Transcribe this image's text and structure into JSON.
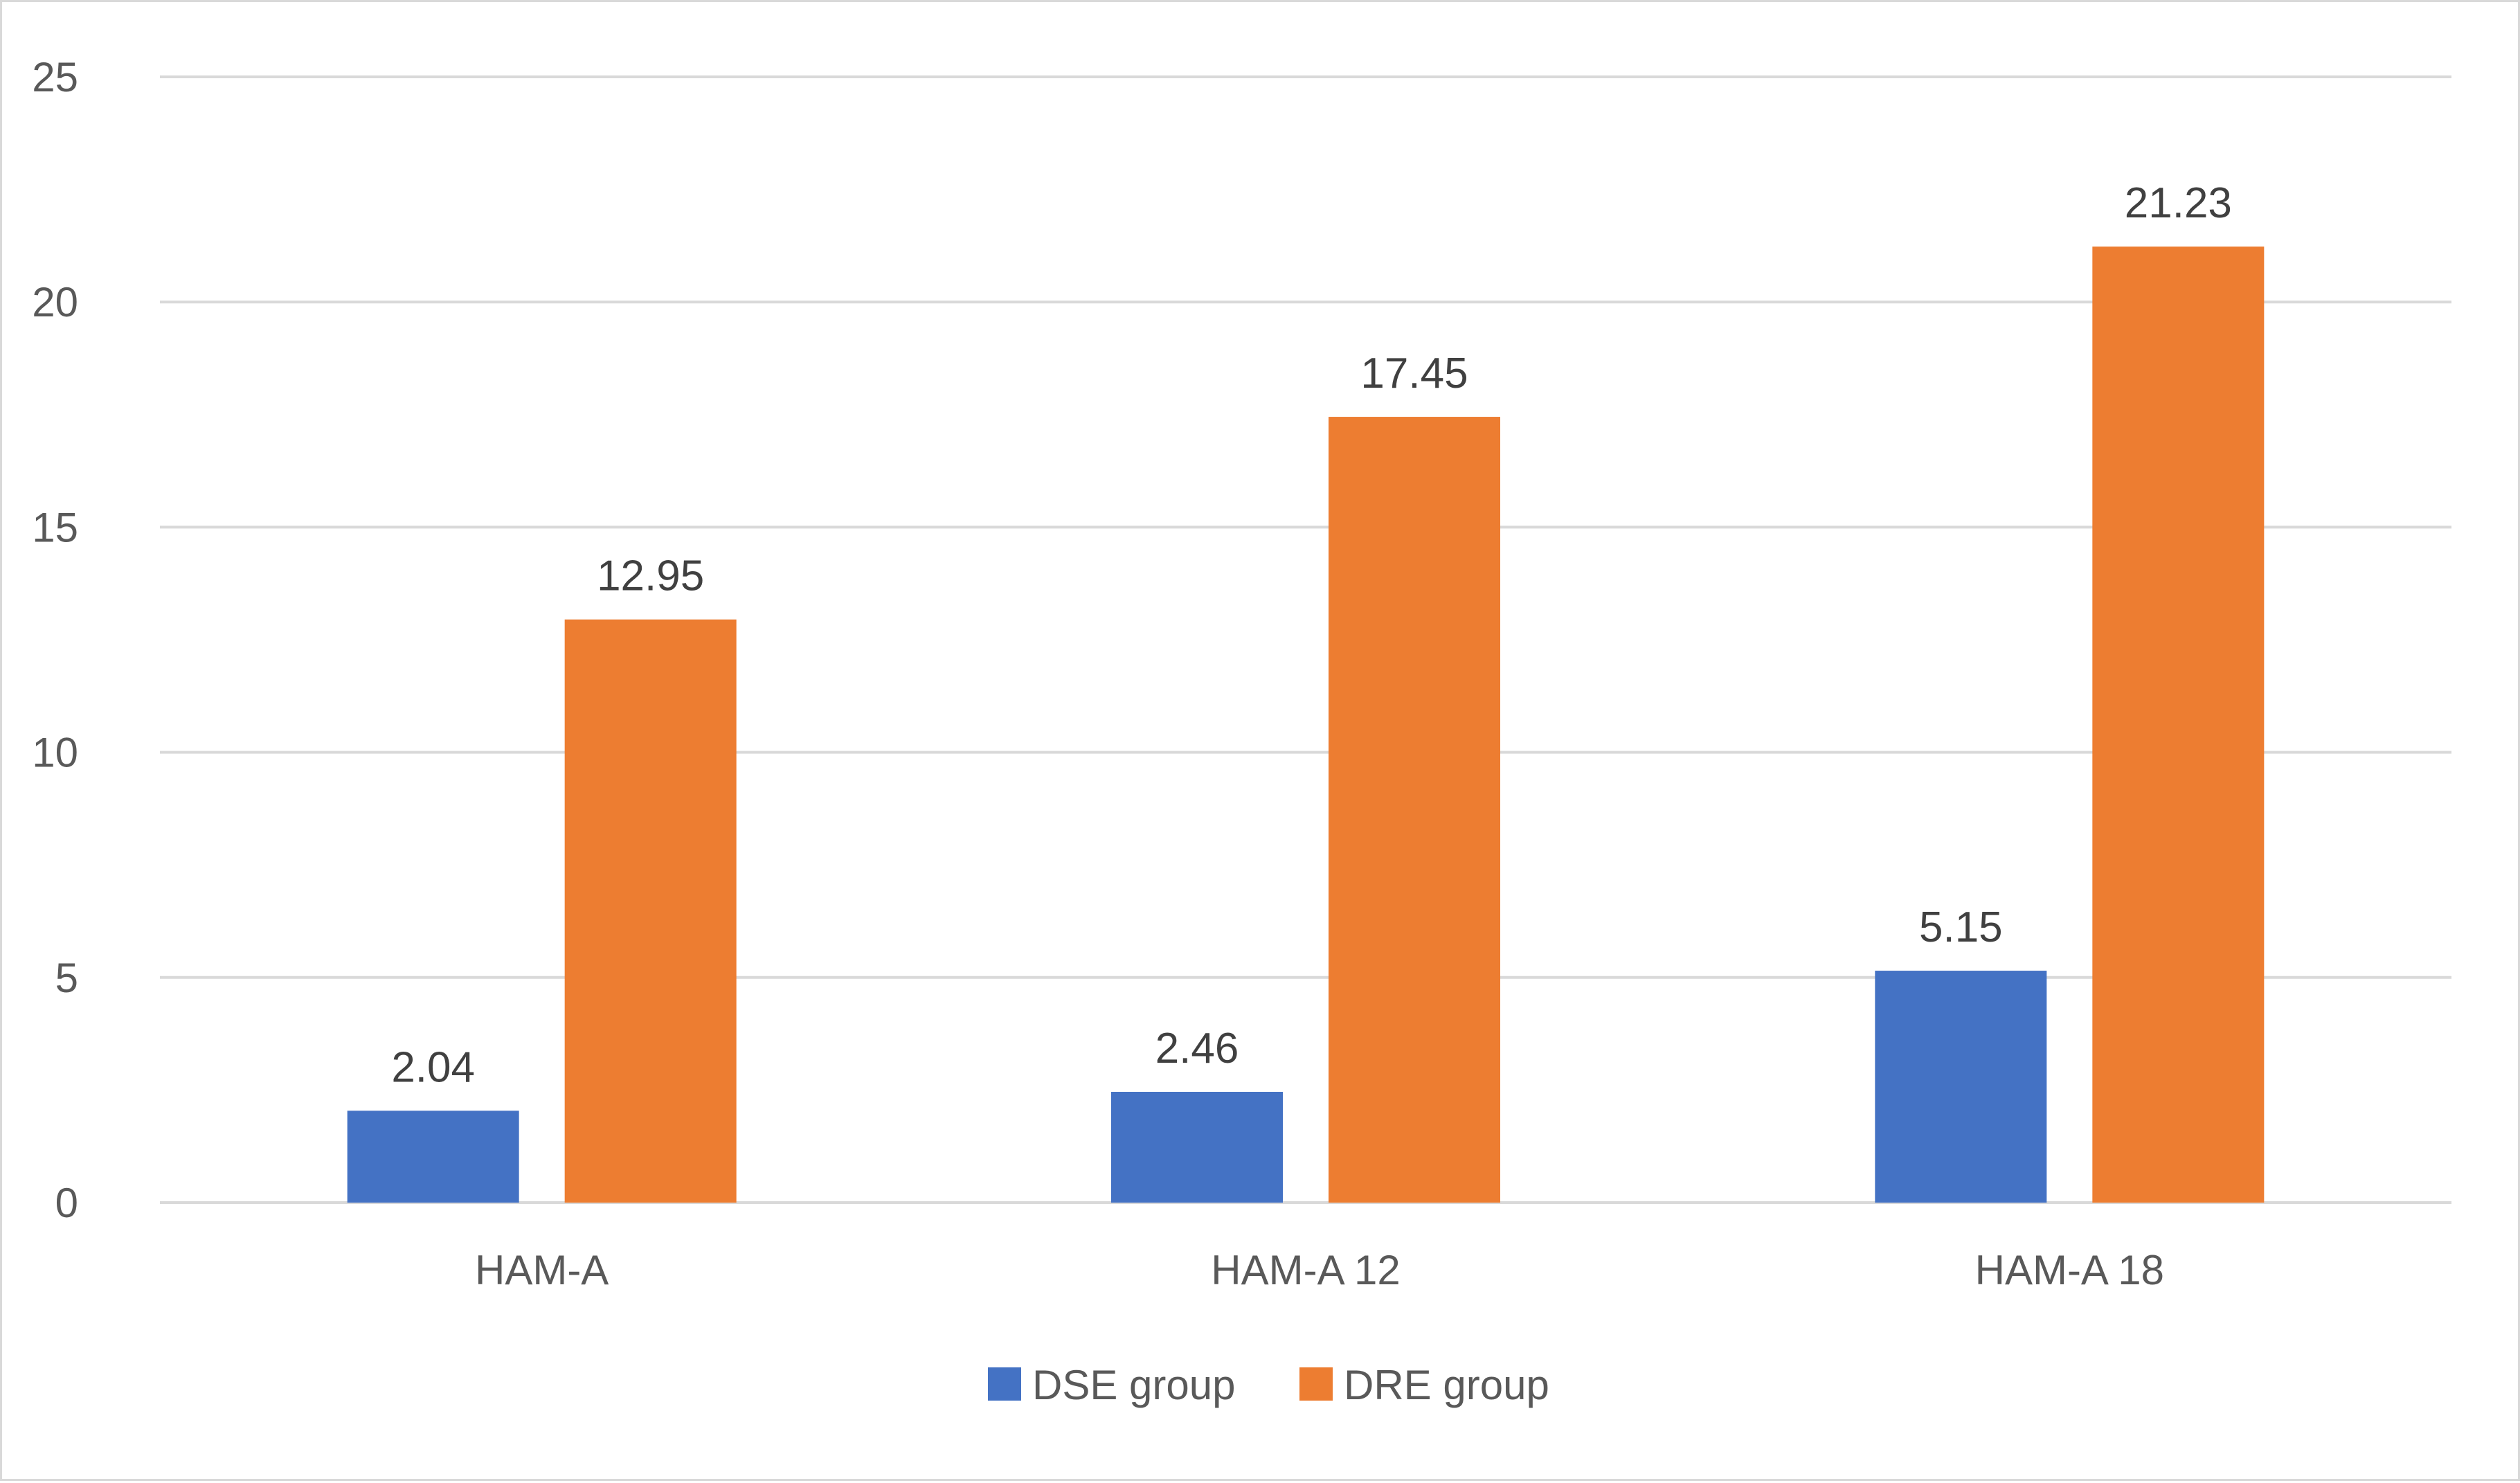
{
  "chart_data": {
    "type": "bar",
    "title": "",
    "xlabel": "",
    "ylabel": "",
    "categories": [
      "HAM-A",
      "HAM-A 12",
      "HAM-A 18"
    ],
    "series": [
      {
        "name": "DSE group",
        "values": [
          2.04,
          2.46,
          5.15
        ],
        "color": "#4472c4"
      },
      {
        "name": "DRE group",
        "values": [
          12.95,
          17.45,
          21.23
        ],
        "color": "#ed7d31"
      }
    ],
    "data_labels": [
      [
        "2.04",
        "2.46",
        "5.15"
      ],
      [
        "12.95",
        "17.45",
        "21.23"
      ]
    ],
    "ylim": [
      0,
      25
    ],
    "yticks": [
      0,
      5,
      10,
      15,
      20,
      25
    ],
    "grid": true,
    "legend_position": "bottom-center"
  }
}
